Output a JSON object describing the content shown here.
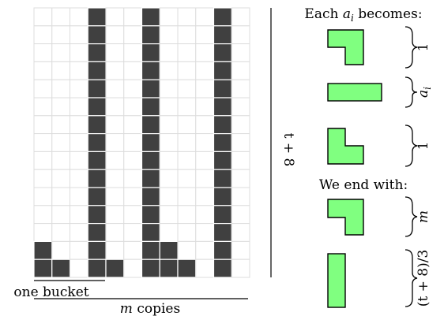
{
  "grid": {
    "columns": 12,
    "rows": 15,
    "cell_fill": "#404040",
    "grid_line_color": "#dddddd",
    "columns_filled_rows": [
      2,
      1,
      0,
      15,
      1,
      0,
      15,
      2,
      1,
      0,
      15,
      0
    ]
  },
  "labels": {
    "one_bucket": "one bucket",
    "m_copies_var": "m",
    "m_copies_word": "copies",
    "height_label": "t + 8"
  },
  "legend": {
    "title_prefix": "Each",
    "title_var": "a",
    "title_sub": "i",
    "title_suffix": "becomes:",
    "end_title": "We end with:",
    "piece_color": "#80ff80",
    "brace_labels": {
      "top_piece": "1",
      "bar_piece_var": "a",
      "bar_piece_sub": "i",
      "bottom_piece": "1",
      "end_l_piece": "m",
      "end_bar_piece": "(t + 8)/3"
    }
  }
}
